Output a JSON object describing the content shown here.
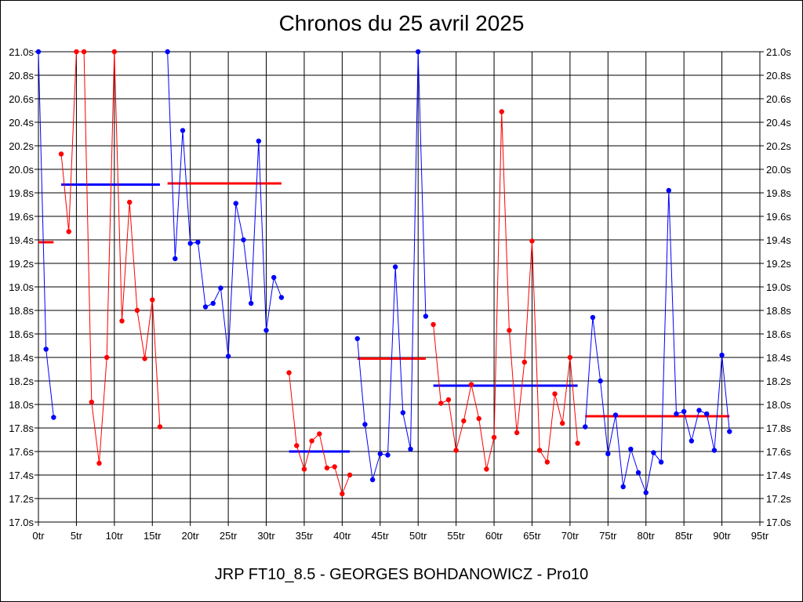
{
  "chart_data": {
    "type": "line",
    "title": "Chronos du 25 avril 2025",
    "subtitle": "JRP FT10_8.5 - GEORGES BOHDANOWICZ - Pro10",
    "xlabel": "",
    "ylabel": "",
    "xlim": [
      0,
      95
    ],
    "ylim": [
      17.0,
      21.0
    ],
    "grid": true,
    "x_ticks": [
      "0tr",
      "5tr",
      "10tr",
      "15tr",
      "20tr",
      "25tr",
      "30tr",
      "35tr",
      "40tr",
      "45tr",
      "50tr",
      "55tr",
      "60tr",
      "65tr",
      "70tr",
      "75tr",
      "80tr",
      "85tr",
      "90tr",
      "95tr"
    ],
    "y_ticks": [
      "17.0s",
      "17.2s",
      "17.4s",
      "17.6s",
      "17.8s",
      "18.0s",
      "18.2s",
      "18.4s",
      "18.6s",
      "18.8s",
      "19.0s",
      "19.2s",
      "19.4s",
      "19.6s",
      "19.8s",
      "20.0s",
      "20.2s",
      "20.4s",
      "20.6s",
      "20.8s",
      "21.0s"
    ],
    "colors": {
      "blue": "#0000ff",
      "red": "#ff0000",
      "grid": "#000000"
    },
    "series": [
      {
        "color": "#0000ff",
        "points": [
          [
            0,
            21.0
          ],
          [
            1,
            18.47
          ],
          [
            2,
            17.89
          ]
        ]
      },
      {
        "color": "#ff0000",
        "points": [
          [
            3,
            20.13
          ],
          [
            4,
            19.47
          ],
          [
            5,
            21.0
          ],
          [
            6,
            21.0
          ],
          [
            7,
            18.02
          ],
          [
            8,
            17.5
          ],
          [
            9,
            18.4
          ],
          [
            10,
            21.0
          ],
          [
            11,
            18.71
          ],
          [
            12,
            19.72
          ],
          [
            13,
            18.8
          ],
          [
            14,
            18.39
          ],
          [
            15,
            18.89
          ],
          [
            16,
            17.81
          ]
        ]
      },
      {
        "color": "#0000ff",
        "points": [
          [
            17,
            21.0
          ],
          [
            18,
            19.24
          ],
          [
            19,
            20.33
          ],
          [
            20,
            19.37
          ],
          [
            21,
            19.38
          ],
          [
            22,
            18.83
          ],
          [
            23,
            18.86
          ],
          [
            24,
            18.99
          ],
          [
            25,
            18.41
          ],
          [
            26,
            19.71
          ],
          [
            27,
            19.4
          ],
          [
            28,
            18.86
          ],
          [
            29,
            20.24
          ],
          [
            30,
            18.63
          ],
          [
            31,
            19.08
          ],
          [
            32,
            18.91
          ]
        ]
      },
      {
        "color": "#ff0000",
        "points": [
          [
            33,
            18.27
          ],
          [
            34,
            17.65
          ],
          [
            35,
            17.45
          ],
          [
            36,
            17.69
          ],
          [
            37,
            17.75
          ],
          [
            38,
            17.46
          ],
          [
            39,
            17.47
          ],
          [
            40,
            17.24
          ],
          [
            41,
            17.4
          ]
        ]
      },
      {
        "color": "#0000ff",
        "points": [
          [
            42,
            18.56
          ],
          [
            43,
            17.83
          ],
          [
            44,
            17.36
          ],
          [
            45,
            17.58
          ],
          [
            46,
            17.57
          ],
          [
            47,
            19.17
          ],
          [
            48,
            17.93
          ],
          [
            49,
            17.62
          ],
          [
            50,
            21.0
          ],
          [
            51,
            18.75
          ]
        ]
      },
      {
        "color": "#ff0000",
        "points": [
          [
            52,
            18.68
          ],
          [
            53,
            18.01
          ],
          [
            54,
            18.04
          ],
          [
            55,
            17.61
          ],
          [
            56,
            17.86
          ],
          [
            57,
            18.17
          ],
          [
            58,
            17.88
          ],
          [
            59,
            17.45
          ],
          [
            60,
            17.72
          ],
          [
            61,
            20.49
          ],
          [
            62,
            18.63
          ],
          [
            63,
            17.76
          ],
          [
            64,
            18.36
          ],
          [
            65,
            19.39
          ],
          [
            66,
            17.61
          ],
          [
            67,
            17.51
          ],
          [
            68,
            18.09
          ],
          [
            69,
            17.84
          ],
          [
            70,
            18.4
          ],
          [
            71,
            17.67
          ]
        ]
      },
      {
        "color": "#0000ff",
        "points": [
          [
            72,
            17.81
          ],
          [
            73,
            18.74
          ],
          [
            74,
            18.2
          ],
          [
            75,
            17.58
          ],
          [
            76,
            17.91
          ],
          [
            77,
            17.3
          ],
          [
            78,
            17.62
          ],
          [
            79,
            17.42
          ],
          [
            80,
            17.25
          ],
          [
            81,
            17.59
          ],
          [
            82,
            17.51
          ],
          [
            83,
            19.82
          ],
          [
            84,
            17.92
          ],
          [
            85,
            17.94
          ],
          [
            86,
            17.69
          ],
          [
            87,
            17.95
          ],
          [
            88,
            17.92
          ],
          [
            89,
            17.61
          ],
          [
            90,
            18.42
          ],
          [
            91,
            17.77
          ]
        ]
      }
    ],
    "averages": [
      {
        "color": "#ff0000",
        "x_start": 0,
        "x_end": 2,
        "value": 19.38
      },
      {
        "color": "#0000ff",
        "x_start": 3,
        "x_end": 16,
        "value": 19.87
      },
      {
        "color": "#ff0000",
        "x_start": 17,
        "x_end": 32,
        "value": 19.88
      },
      {
        "color": "#0000ff",
        "x_start": 33,
        "x_end": 41,
        "value": 17.6
      },
      {
        "color": "#ff0000",
        "x_start": 42,
        "x_end": 51,
        "value": 18.39
      },
      {
        "color": "#0000ff",
        "x_start": 52,
        "x_end": 71,
        "value": 18.16
      },
      {
        "color": "#ff0000",
        "x_start": 72,
        "x_end": 91,
        "value": 17.9
      }
    ]
  }
}
